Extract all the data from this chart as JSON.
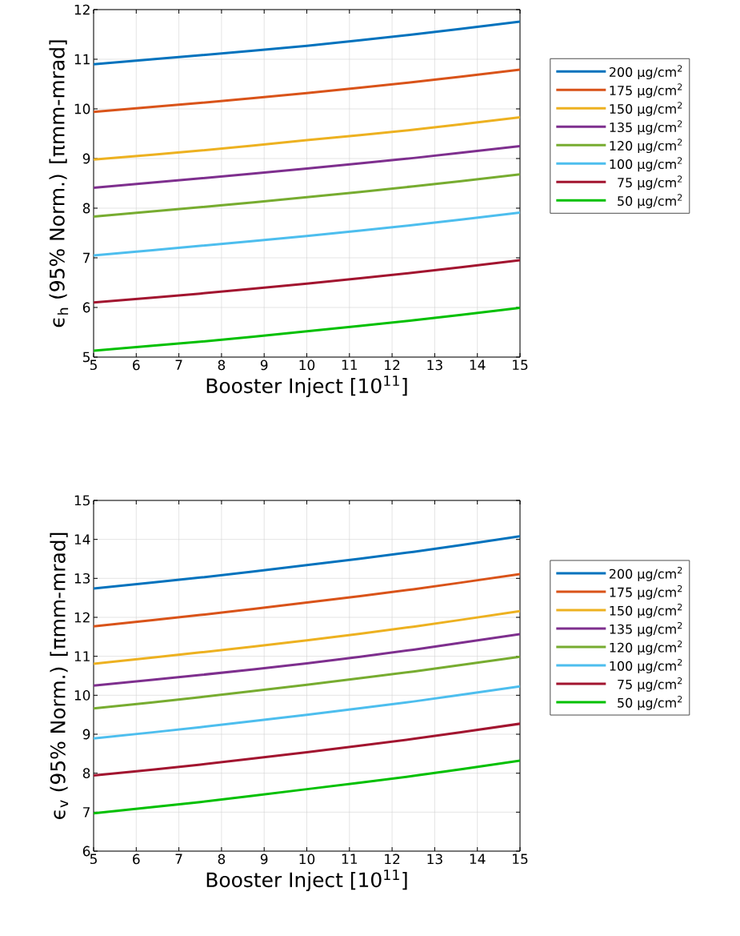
{
  "chart_data": [
    {
      "type": "line",
      "xlabel": "Booster Inject [10$^{11}$]",
      "ylabel": "ϵ$_{h}$ (95% Norm.) [πmm-mrad]",
      "x": [
        5,
        7.5,
        10,
        12.5,
        15
      ],
      "xlim": [
        5,
        15
      ],
      "ylim": [
        5,
        12
      ],
      "xticks": [
        5,
        6,
        7,
        8,
        9,
        10,
        11,
        12,
        13,
        14,
        15
      ],
      "yticks": [
        5,
        6,
        7,
        8,
        9,
        10,
        11,
        12
      ],
      "grid": true,
      "legend": "right",
      "series": [
        {
          "name": "200 μg/cm$^{2}$",
          "color": "#0072bd",
          "values": [
            10.9,
            11.08,
            11.27,
            11.5,
            11.76
          ]
        },
        {
          "name": "175 μg/cm$^{2}$",
          "color": "#d95319",
          "values": [
            9.94,
            10.12,
            10.32,
            10.54,
            10.79
          ]
        },
        {
          "name": "150 μg/cm$^{2}$",
          "color": "#edb120",
          "values": [
            8.98,
            9.16,
            9.37,
            9.58,
            9.83
          ]
        },
        {
          "name": "135 μg/cm$^{2}$",
          "color": "#7e2f8e",
          "values": [
            8.41,
            8.6,
            8.8,
            9.01,
            9.25
          ]
        },
        {
          "name": "120 μg/cm$^{2}$",
          "color": "#77ac30",
          "values": [
            7.83,
            8.02,
            8.22,
            8.44,
            8.68
          ]
        },
        {
          "name": "100 μg/cm$^{2}$",
          "color": "#4dbeee",
          "values": [
            7.05,
            7.24,
            7.44,
            7.66,
            7.91
          ]
        },
        {
          "name": "75 μg/cm$^{2}$",
          "color": "#a2142f",
          "values": [
            6.1,
            6.28,
            6.48,
            6.7,
            6.95
          ]
        },
        {
          "name": "50 μg/cm$^{2}$",
          "color": "#00c000",
          "values": [
            5.13,
            5.31,
            5.52,
            5.74,
            5.99
          ]
        }
      ]
    },
    {
      "type": "line",
      "xlabel": "Booster Inject [10$^{11}$]",
      "ylabel": "ϵ$_{v}$ (95% Norm.) [πmm-mrad]",
      "x": [
        5,
        7.5,
        10,
        12.5,
        15
      ],
      "xlim": [
        5,
        15
      ],
      "ylim": [
        6,
        15
      ],
      "xticks": [
        5,
        6,
        7,
        8,
        9,
        10,
        11,
        12,
        13,
        14,
        15
      ],
      "yticks": [
        6,
        7,
        8,
        9,
        10,
        11,
        12,
        13,
        14,
        15
      ],
      "grid": true,
      "legend": "right",
      "series": [
        {
          "name": "200 μg/cm$^{2}$",
          "color": "#0072bd",
          "values": [
            12.74,
            13.02,
            13.34,
            13.68,
            14.08
          ]
        },
        {
          "name": "175 μg/cm$^{2}$",
          "color": "#d95319",
          "values": [
            11.77,
            12.06,
            12.38,
            12.72,
            13.11
          ]
        },
        {
          "name": "150 μg/cm$^{2}$",
          "color": "#edb120",
          "values": [
            10.81,
            11.1,
            11.41,
            11.76,
            12.16
          ]
        },
        {
          "name": "135 μg/cm$^{2}$",
          "color": "#7e2f8e",
          "values": [
            10.25,
            10.52,
            10.82,
            11.17,
            11.57
          ]
        },
        {
          "name": "120 μg/cm$^{2}$",
          "color": "#77ac30",
          "values": [
            9.66,
            9.95,
            10.27,
            10.61,
            10.99
          ]
        },
        {
          "name": "100 μg/cm$^{2}$",
          "color": "#4dbeee",
          "values": [
            8.89,
            9.18,
            9.5,
            9.84,
            10.23
          ]
        },
        {
          "name": "75 μg/cm$^{2}$",
          "color": "#a2142f",
          "values": [
            7.94,
            8.22,
            8.54,
            8.88,
            9.27
          ]
        },
        {
          "name": "50 μg/cm$^{2}$",
          "color": "#00c000",
          "values": [
            6.97,
            7.26,
            7.59,
            7.93,
            8.32
          ]
        }
      ]
    }
  ]
}
